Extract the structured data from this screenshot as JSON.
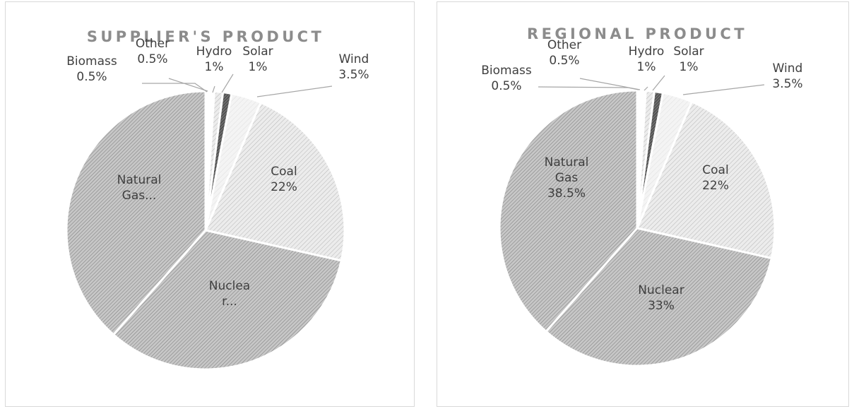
{
  "chart_data": [
    {
      "type": "pie",
      "title": "SUPPLIER'S PRODUCT",
      "slices": [
        {
          "category": "Biomass",
          "value": 0.5,
          "label_lines": [
            "Biomass",
            "0.5%"
          ],
          "pattern": "white"
        },
        {
          "category": "Other",
          "value": 0.5,
          "label_lines": [
            "Other",
            "0.5%"
          ],
          "pattern": "white"
        },
        {
          "category": "Hydro",
          "value": 1,
          "label_lines": [
            "Hydro",
            "1%"
          ],
          "pattern": "light"
        },
        {
          "category": "Solar",
          "value": 1,
          "label_lines": [
            "Solar",
            "1%"
          ],
          "pattern": "dark"
        },
        {
          "category": "Wind",
          "value": 3.5,
          "label_lines": [
            "Wind",
            "3.5%"
          ],
          "pattern": "verylight"
        },
        {
          "category": "Coal",
          "value": 22,
          "label_lines": [
            "Coal",
            "22%"
          ],
          "pattern": "light"
        },
        {
          "category": "Nuclear",
          "value": 33,
          "label_lines": [
            "Nuclea",
            "r..."
          ],
          "pattern": "medium"
        },
        {
          "category": "Natural Gas",
          "value": 38.5,
          "label_lines": [
            "Natural",
            "Gas..."
          ],
          "pattern": "medium"
        }
      ]
    },
    {
      "type": "pie",
      "title": "REGIONAL PRODUCT",
      "slices": [
        {
          "category": "Biomass",
          "value": 0.5,
          "label_lines": [
            "Biomass",
            "0.5%"
          ],
          "pattern": "white"
        },
        {
          "category": "Other",
          "value": 0.5,
          "label_lines": [
            "Other",
            "0.5%"
          ],
          "pattern": "white"
        },
        {
          "category": "Hydro",
          "value": 1,
          "label_lines": [
            "Hydro",
            "1%"
          ],
          "pattern": "light"
        },
        {
          "category": "Solar",
          "value": 1,
          "label_lines": [
            "Solar",
            "1%"
          ],
          "pattern": "dark"
        },
        {
          "category": "Wind",
          "value": 3.5,
          "label_lines": [
            "Wind",
            "3.5%"
          ],
          "pattern": "verylight"
        },
        {
          "category": "Coal",
          "value": 22,
          "label_lines": [
            "Coal",
            "22%"
          ],
          "pattern": "light"
        },
        {
          "category": "Nuclear",
          "value": 33,
          "label_lines": [
            "Nuclear",
            "33%"
          ],
          "pattern": "medium"
        },
        {
          "category": "Natural Gas",
          "value": 38.5,
          "label_lines": [
            "Natural",
            "Gas",
            "38.5%"
          ],
          "pattern": "medium"
        }
      ]
    }
  ]
}
